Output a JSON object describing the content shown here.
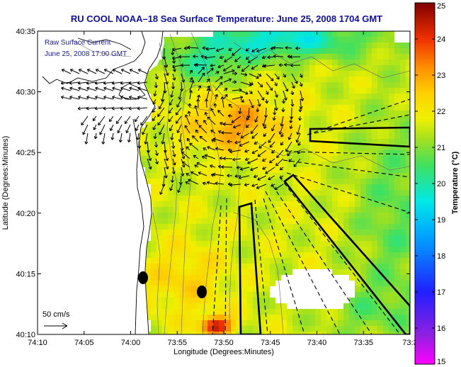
{
  "chart_data": {
    "type": "heatmap",
    "title": "RU COOL   NOAA–18  Sea Surface Temperature:  June 25, 2008 1704 GMT",
    "xlabel": "Longitude (Degrees:Minutes)",
    "ylabel": "Latitude (Degrees:Minutes)",
    "x_ticks": [
      "74:10",
      "74:05",
      "74:00",
      "73:55",
      "73:50",
      "73:45",
      "73:40",
      "73:35",
      "73:3"
    ],
    "y_ticks": [
      "40:35",
      "40:30",
      "40:25",
      "40:20",
      "40:15",
      "40:10"
    ],
    "xlim_minutes_west": [
      10,
      30
    ],
    "ylim_minutes_north": [
      10,
      35
    ],
    "legend": {
      "line1": "Raw Surface Current",
      "line2": "June 25, 2008 17:00 GMT"
    },
    "scale_label": "50 cm/s",
    "colorbar": {
      "label": "Temperature (°C)",
      "min": 15,
      "max": 25,
      "ticks": [
        "15",
        "16",
        "17",
        "18",
        "19",
        "20",
        "21",
        "22",
        "23",
        "24",
        "25"
      ]
    },
    "sst_field": {
      "dominant_range_c": [
        20,
        23
      ],
      "warm_core_c": 23,
      "warm_patch_south_c": 24.5,
      "cool_north_c": 19.5
    }
  },
  "colors": {
    "title": "#1010a0",
    "coast": "#000000",
    "arrows": "#000000"
  }
}
